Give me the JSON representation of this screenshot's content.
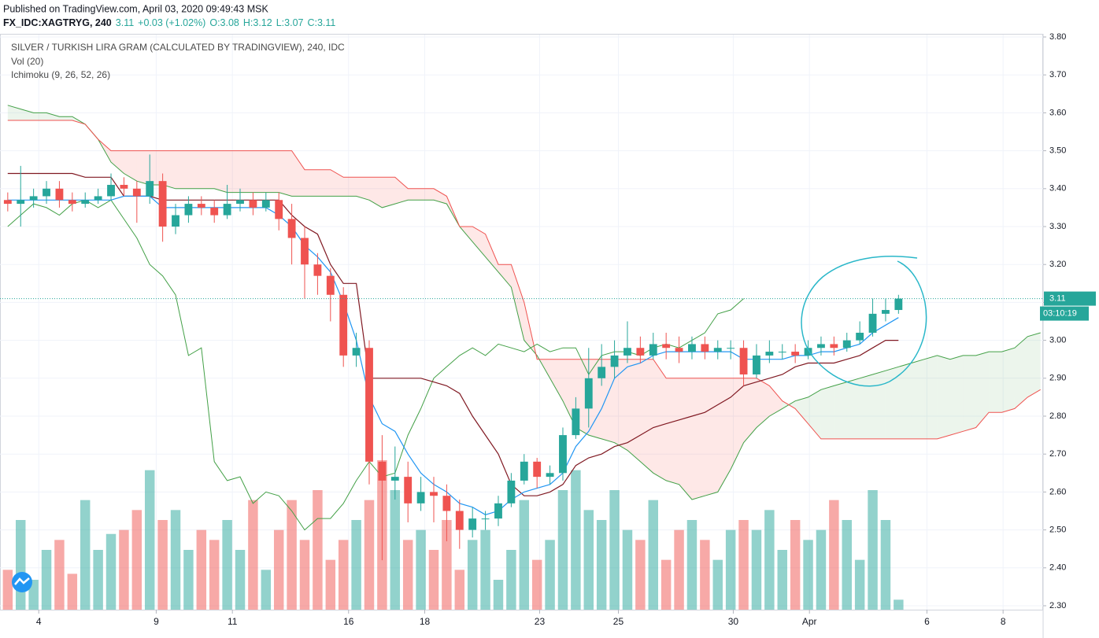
{
  "chart_data": {
    "type": "candlestick",
    "published": "Published on TradingView.com, April 03, 2020 09:49:43 MSK",
    "symbol": "FX_IDC:XAGTRYG, 240",
    "quote": [
      "3.11",
      "+0.03 (+1.02%)",
      "O:3.08",
      "H:3.12",
      "L:3.07",
      "C:3.11"
    ],
    "title": "SILVER / TURKISH LIRA GRAM (CALCULATED BY TRADINGVIEW), 240, IDC",
    "legend": [
      "Vol (20)",
      "Ichimoku (9, 26, 52, 26)"
    ],
    "countdown": "03:10:19",
    "grid": true,
    "colors": {
      "up": "#26a69a",
      "down": "#ef5350",
      "tenkan": "#2196f3",
      "kijun": "#801922",
      "span_a": "#43a047",
      "span_b": "#ef5350",
      "lagging": "#43a047",
      "price_line": "#26a69a"
    },
    "xlim": [
      -0.6,
      80.2
    ],
    "ylim": [
      2.3,
      3.8
    ],
    "xticks": [
      {
        "value": 2.4,
        "label": "4"
      },
      {
        "value": 11.5,
        "label": "9"
      },
      {
        "value": 17.4,
        "label": "11"
      },
      {
        "value": 26.4,
        "label": "16"
      },
      {
        "value": 32.3,
        "label": "18"
      },
      {
        "value": 41.2,
        "label": "23"
      },
      {
        "value": 47.3,
        "label": "25"
      },
      {
        "value": 56.2,
        "label": "30"
      },
      {
        "value": 62.1,
        "label": "Apr"
      },
      {
        "value": 71.2,
        "label": "6"
      },
      {
        "value": 77.1,
        "label": "8"
      }
    ],
    "yticks": [
      {
        "value": 3.8,
        "label": "3.80"
      },
      {
        "value": 3.7,
        "label": "3.70"
      },
      {
        "value": 3.6,
        "label": "3.60"
      },
      {
        "value": 3.5,
        "label": "3.50"
      },
      {
        "value": 3.4,
        "label": "3.40"
      },
      {
        "value": 3.3,
        "label": "3.30"
      },
      {
        "value": 3.2,
        "label": "3.20"
      },
      {
        "value": 3.1,
        "label": "3.10"
      },
      {
        "value": 3.0,
        "label": "3.00"
      },
      {
        "value": 2.9,
        "label": "2.90"
      },
      {
        "value": 2.8,
        "label": "2.80"
      },
      {
        "value": 2.7,
        "label": "2.70"
      },
      {
        "value": 2.6,
        "label": "2.60"
      },
      {
        "value": 2.5,
        "label": "2.50"
      },
      {
        "value": 2.4,
        "label": "2.40"
      },
      {
        "value": 2.3,
        "label": "2.30"
      }
    ],
    "open": [
      3.37,
      3.36,
      3.37,
      3.38,
      3.4,
      3.37,
      3.36,
      3.37,
      3.38,
      3.41,
      3.4,
      3.38,
      3.42,
      3.3,
      3.33,
      3.36,
      3.35,
      3.33,
      3.36,
      3.37,
      3.35,
      3.37,
      3.32,
      3.27,
      3.2,
      3.17,
      3.12,
      2.96,
      2.98,
      2.68,
      2.63,
      2.64,
      2.57,
      2.6,
      2.59,
      2.55,
      2.5,
      2.53,
      2.53,
      2.57,
      2.63,
      2.68,
      2.64,
      2.65,
      2.75,
      2.82,
      2.9,
      2.93,
      2.96,
      2.98,
      2.96,
      2.99,
      2.98,
      2.97,
      2.99,
      2.97,
      2.98,
      2.98,
      2.91,
      2.96,
      2.97,
      2.97,
      2.96,
      2.98,
      2.99,
      2.98,
      3.0,
      3.02,
      3.07,
      3.08
    ],
    "high": [
      3.39,
      3.46,
      3.4,
      3.42,
      3.42,
      3.39,
      3.39,
      3.4,
      3.44,
      3.43,
      3.42,
      3.49,
      3.44,
      3.36,
      3.38,
      3.38,
      3.37,
      3.41,
      3.4,
      3.39,
      3.39,
      3.39,
      3.36,
      3.3,
      3.23,
      3.19,
      3.14,
      3.02,
      3.0,
      2.75,
      2.72,
      2.68,
      2.64,
      2.64,
      2.62,
      2.58,
      2.56,
      2.55,
      2.59,
      2.65,
      2.7,
      2.69,
      2.67,
      2.77,
      2.85,
      2.98,
      2.99,
      3.0,
      3.05,
      3.01,
      3.02,
      3.02,
      3.01,
      3.01,
      3.01,
      3.0,
      3.0,
      3.0,
      2.99,
      3.0,
      2.99,
      2.99,
      3.0,
      3.01,
      3.01,
      3.02,
      3.05,
      3.11,
      3.11,
      3.12
    ],
    "low": [
      3.34,
      3.3,
      3.35,
      3.36,
      3.35,
      3.34,
      3.35,
      3.36,
      3.37,
      3.38,
      3.31,
      3.36,
      3.26,
      3.28,
      3.31,
      3.33,
      3.31,
      3.32,
      3.34,
      3.33,
      3.34,
      3.29,
      3.2,
      3.11,
      3.12,
      3.05,
      2.93,
      2.93,
      2.62,
      2.42,
      2.58,
      2.52,
      2.55,
      2.52,
      2.47,
      2.45,
      2.48,
      2.5,
      2.51,
      2.56,
      2.62,
      2.61,
      2.62,
      2.63,
      2.74,
      2.77,
      2.88,
      2.9,
      2.94,
      2.94,
      2.95,
      2.95,
      2.94,
      2.95,
      2.95,
      2.95,
      2.95,
      2.88,
      2.9,
      2.94,
      2.95,
      2.94,
      2.95,
      2.96,
      2.96,
      2.97,
      2.99,
      3.01,
      3.05,
      3.07
    ],
    "close": [
      3.36,
      3.37,
      3.38,
      3.4,
      3.37,
      3.36,
      3.37,
      3.38,
      3.41,
      3.4,
      3.38,
      3.42,
      3.3,
      3.33,
      3.36,
      3.35,
      3.33,
      3.36,
      3.37,
      3.35,
      3.37,
      3.32,
      3.27,
      3.2,
      3.17,
      3.12,
      2.96,
      2.98,
      2.68,
      2.63,
      2.64,
      2.57,
      2.6,
      2.59,
      2.55,
      2.5,
      2.53,
      2.53,
      2.57,
      2.63,
      2.68,
      2.64,
      2.65,
      2.75,
      2.82,
      2.9,
      2.93,
      2.96,
      2.98,
      2.96,
      2.99,
      2.98,
      2.97,
      2.99,
      2.97,
      2.98,
      2.98,
      2.91,
      2.96,
      2.97,
      2.97,
      2.96,
      2.98,
      2.99,
      2.98,
      3.0,
      3.02,
      3.07,
      3.08,
      3.11
    ],
    "volume": [
      20,
      45,
      15,
      30,
      35,
      18,
      55,
      30,
      38,
      40,
      50,
      70,
      45,
      50,
      30,
      40,
      35,
      45,
      30,
      55,
      20,
      40,
      55,
      35,
      60,
      25,
      35,
      45,
      55,
      75,
      60,
      35,
      40,
      30,
      45,
      20,
      35,
      40,
      15,
      30,
      55,
      25,
      35,
      60,
      70,
      50,
      45,
      60,
      40,
      35,
      55,
      25,
      40,
      45,
      35,
      25,
      40,
      45,
      40,
      50,
      30,
      45,
      35,
      40,
      55,
      45,
      25,
      60,
      45,
      5
    ],
    "tenkan": [
      3.37,
      3.37,
      3.37,
      3.37,
      3.37,
      3.37,
      3.37,
      3.37,
      3.37,
      3.38,
      3.38,
      3.38,
      3.35,
      3.35,
      3.35,
      3.35,
      3.35,
      3.35,
      3.35,
      3.35,
      3.35,
      3.33,
      3.3,
      3.25,
      3.22,
      3.18,
      3.1,
      3.0,
      2.85,
      2.78,
      2.76,
      2.7,
      2.65,
      2.62,
      2.6,
      2.57,
      2.56,
      2.54,
      2.55,
      2.58,
      2.6,
      2.61,
      2.62,
      2.65,
      2.72,
      2.76,
      2.82,
      2.9,
      2.93,
      2.94,
      2.96,
      2.97,
      2.97,
      2.97,
      2.97,
      2.97,
      2.97,
      2.95,
      2.95,
      2.95,
      2.95,
      2.96,
      2.96,
      2.97,
      2.97,
      2.98,
      2.99,
      3.02,
      3.04,
      3.06
    ],
    "kijun": [
      3.44,
      3.44,
      3.44,
      3.44,
      3.44,
      3.44,
      3.43,
      3.43,
      3.43,
      3.38,
      3.38,
      3.38,
      3.37,
      3.37,
      3.37,
      3.37,
      3.37,
      3.37,
      3.37,
      3.37,
      3.37,
      3.37,
      3.33,
      3.3,
      3.28,
      3.2,
      3.15,
      3.15,
      2.9,
      2.9,
      2.9,
      2.9,
      2.9,
      2.89,
      2.88,
      2.86,
      2.8,
      2.75,
      2.7,
      2.62,
      2.59,
      2.59,
      2.6,
      2.62,
      2.67,
      2.69,
      2.7,
      2.72,
      2.73,
      2.75,
      2.77,
      2.78,
      2.79,
      2.8,
      2.81,
      2.83,
      2.85,
      2.88,
      2.89,
      2.9,
      2.91,
      2.93,
      2.94,
      2.94,
      2.94,
      2.95,
      2.96,
      2.98,
      3.0,
      3.0
    ],
    "span_a": [
      3.62,
      3.61,
      3.6,
      3.6,
      3.59,
      3.59,
      3.57,
      3.53,
      3.47,
      3.44,
      3.42,
      3.41,
      3.41,
      3.4,
      3.4,
      3.4,
      3.4,
      3.39,
      3.39,
      3.39,
      3.39,
      3.39,
      3.38,
      3.38,
      3.38,
      3.38,
      3.38,
      3.38,
      3.37,
      3.35,
      3.36,
      3.37,
      3.37,
      3.37,
      3.36,
      3.3,
      3.26,
      3.22,
      3.18,
      3.14,
      3.0,
      2.96,
      2.9,
      2.84,
      2.77,
      2.75,
      2.74,
      2.73,
      2.71,
      2.68,
      2.65,
      2.63,
      2.62,
      2.58,
      2.59,
      2.6,
      2.66,
      2.73,
      2.77,
      2.8,
      2.82,
      2.84,
      2.85,
      2.87,
      2.88,
      2.89,
      2.9,
      2.91,
      2.92,
      2.93,
      2.94,
      2.95,
      2.96,
      2.95,
      2.96,
      2.96,
      2.97,
      2.97,
      2.98,
      3.01,
      3.02
    ],
    "span_b": [
      3.58,
      3.58,
      3.58,
      3.58,
      3.58,
      3.58,
      3.57,
      3.53,
      3.5,
      3.5,
      3.5,
      3.5,
      3.5,
      3.5,
      3.5,
      3.5,
      3.5,
      3.5,
      3.5,
      3.5,
      3.5,
      3.5,
      3.5,
      3.45,
      3.45,
      3.45,
      3.43,
      3.43,
      3.43,
      3.43,
      3.43,
      3.4,
      3.4,
      3.4,
      3.38,
      3.3,
      3.3,
      3.28,
      3.2,
      3.2,
      3.1,
      2.95,
      2.95,
      2.95,
      2.95,
      2.95,
      2.95,
      2.95,
      2.95,
      2.95,
      2.95,
      2.9,
      2.9,
      2.9,
      2.9,
      2.9,
      2.9,
      2.9,
      2.9,
      2.88,
      2.84,
      2.82,
      2.78,
      2.74,
      2.74,
      2.74,
      2.74,
      2.74,
      2.74,
      2.74,
      2.74,
      2.74,
      2.74,
      2.75,
      2.76,
      2.77,
      2.81,
      2.81,
      2.82,
      2.85,
      2.87
    ],
    "lagging_span": [
      3.3,
      3.33,
      3.36,
      3.35,
      3.33,
      3.36,
      3.37,
      3.35,
      3.37,
      3.32,
      3.27,
      3.2,
      3.17,
      3.12,
      2.96,
      2.98,
      2.68,
      2.63,
      2.64,
      2.57,
      2.6,
      2.59,
      2.55,
      2.5,
      2.53,
      2.53,
      2.57,
      2.63,
      2.68,
      2.64,
      2.65,
      2.75,
      2.82,
      2.9,
      2.93,
      2.96,
      2.98,
      2.96,
      2.99,
      2.98,
      2.97,
      2.99,
      2.97,
      2.98,
      2.98,
      2.91,
      2.96,
      2.97,
      2.97,
      2.96,
      2.98,
      2.99,
      2.98,
      3.0,
      3.02,
      3.07,
      3.08,
      3.11
    ]
  }
}
